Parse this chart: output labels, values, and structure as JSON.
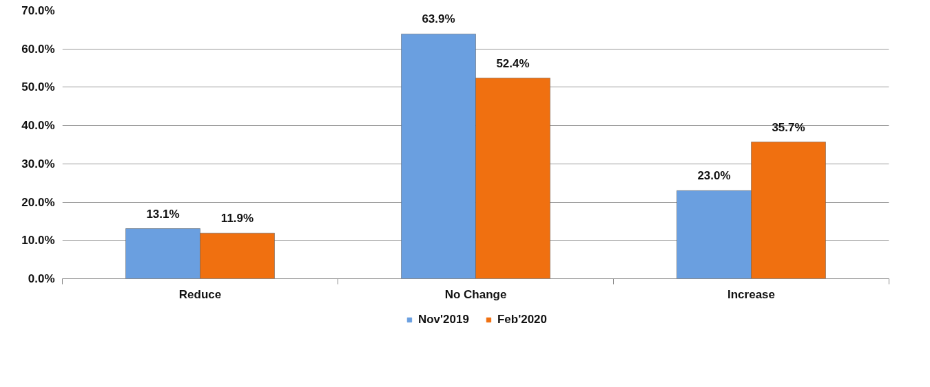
{
  "chart_data": {
    "type": "bar",
    "categories": [
      "Reduce",
      "No Change",
      "Increase"
    ],
    "series": [
      {
        "name": "Nov'2019",
        "color": "#6a9fe0",
        "values": [
          13.1,
          63.9,
          23.0
        ],
        "value_labels": [
          "13.1%",
          "63.9%",
          "23.0%"
        ]
      },
      {
        "name": "Feb'2020",
        "color": "#f07010",
        "values": [
          11.9,
          52.4,
          35.7
        ],
        "value_labels": [
          "11.9%",
          "52.4%",
          "35.7%"
        ]
      }
    ],
    "ylim": [
      0,
      70
    ],
    "yticks": [
      {
        "value": 0,
        "label": "0.0%"
      },
      {
        "value": 10,
        "label": "10.0%"
      },
      {
        "value": 20,
        "label": "20.0%"
      },
      {
        "value": 30,
        "label": "30.0%"
      },
      {
        "value": 40,
        "label": "40.0%"
      },
      {
        "value": 50,
        "label": "50.0%"
      },
      {
        "value": 60,
        "label": "60.0%"
      },
      {
        "value": 70,
        "label": "70.0%"
      }
    ],
    "grid": "y",
    "legend": "bottom"
  }
}
